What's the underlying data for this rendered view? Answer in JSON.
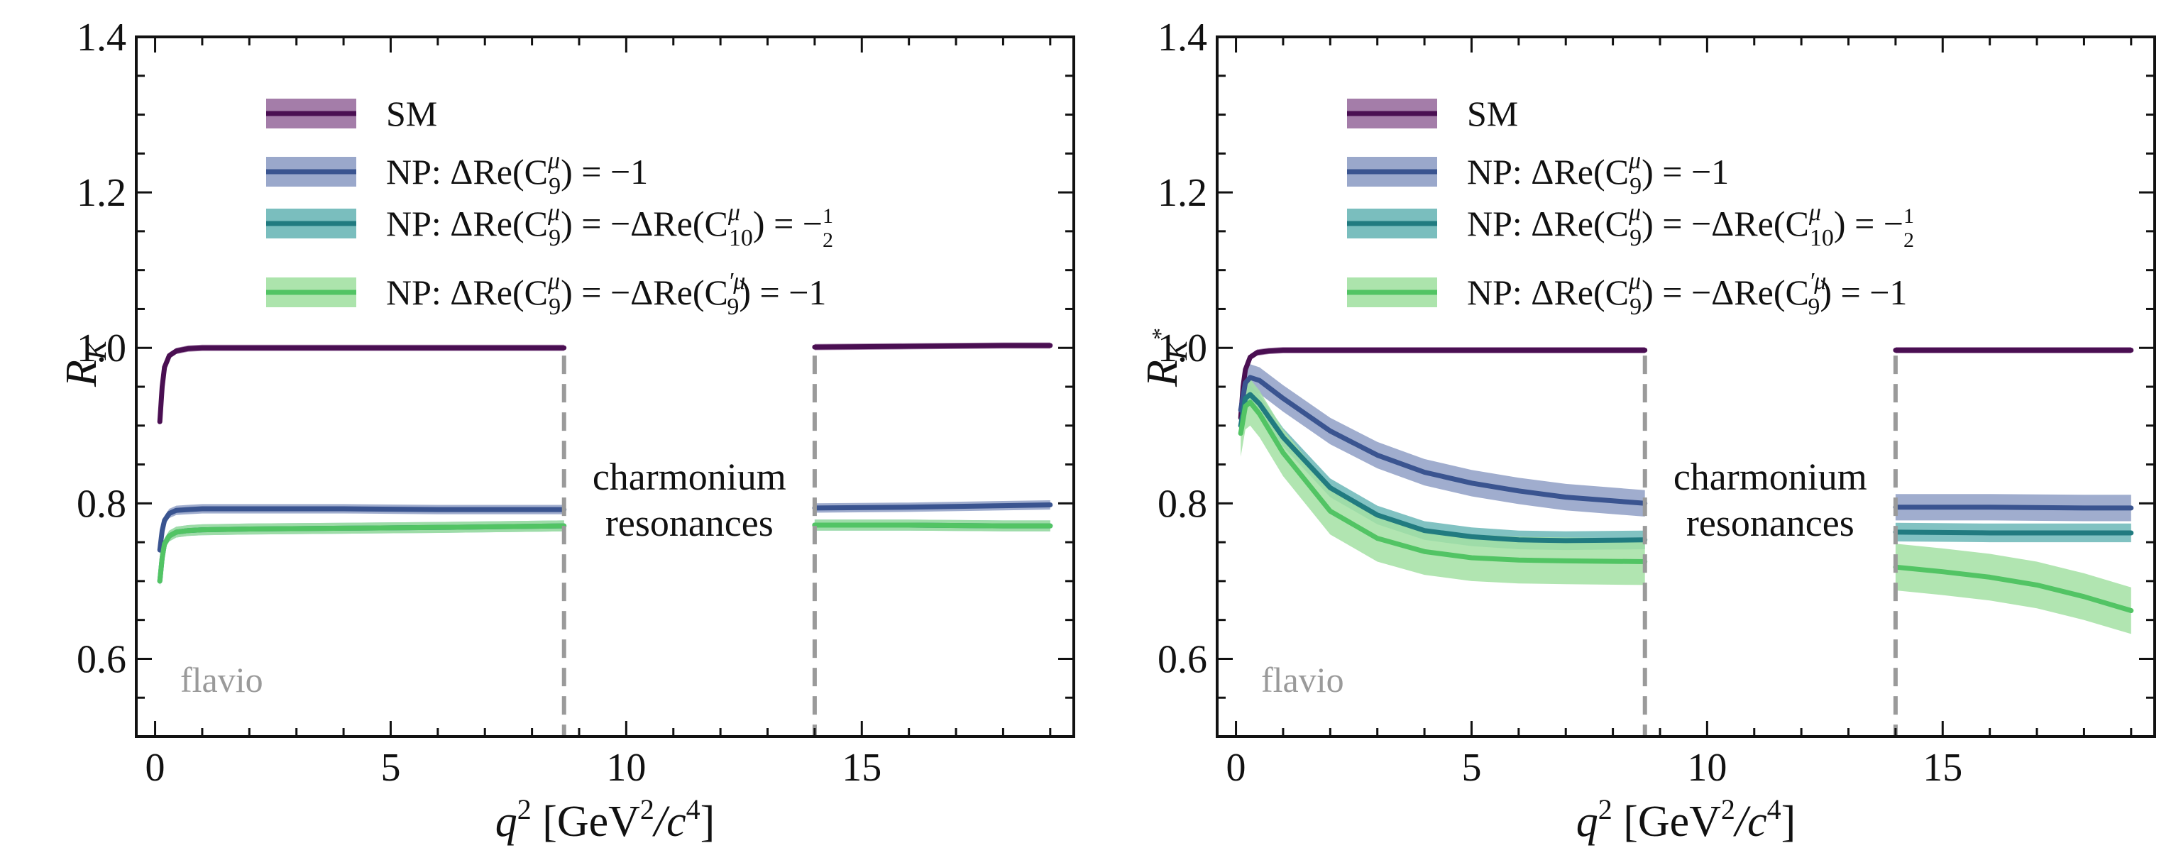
{
  "chart_data": [
    {
      "type": "line",
      "panel": "left",
      "ylabel": "R_K",
      "ylabel_main": "R",
      "ylabel_sub": "K",
      "ylabel_sup": "",
      "xlabel": "q² [GeV²/c⁴]",
      "xlabel_q": "q",
      "xlabel_q_exp": "2",
      "xlabel_rest": "[GeV",
      "xlabel_gev_exp": "2",
      "xlabel_c": "/c",
      "xlabel_c_exp": "4",
      "xlabel_close": "]",
      "xlim": [
        -0.4,
        19.5
      ],
      "ylim": [
        0.5,
        1.4
      ],
      "xticks": [
        0,
        5,
        10,
        15
      ],
      "xtick_labels": [
        "0",
        "5",
        "10",
        "15"
      ],
      "yticks": [
        0.6,
        0.8,
        1.0,
        1.2,
        1.4
      ],
      "ytick_labels": [
        "0.6",
        "0.8",
        "1.0",
        "1.2",
        "1.4"
      ],
      "legend_position": "top-left",
      "watermark": "flavio",
      "annotation": [
        "charmonium",
        "resonances"
      ],
      "vlines": [
        8.68,
        14.0
      ],
      "series": [
        {
          "name": "SM",
          "color": "#4a0f52",
          "band_color": "#9a6fa0",
          "low": {
            "x": [
              0.1,
              0.15,
              0.2,
              0.3,
              0.45,
              0.7,
              1.0,
              2,
              4,
              6,
              8.68
            ],
            "y": [
              0.905,
              0.95,
              0.975,
              0.99,
              0.996,
              0.999,
              1.0,
              1.0,
              1.0,
              1.0,
              1.0
            ]
          },
          "high": {
            "x": [
              14.0,
              16,
              18,
              19
            ],
            "y": [
              1.001,
              1.002,
              1.003,
              1.003
            ]
          },
          "band_halfwidth": 0.004
        },
        {
          "name": "NP: ΔRe(C9μ) = −1",
          "color": "#3a5490",
          "band_color": "#8f9fc5",
          "low": {
            "x": [
              0.1,
              0.15,
              0.2,
              0.3,
              0.45,
              0.7,
              1.0,
              2,
              4,
              6,
              8.68
            ],
            "y": [
              0.74,
              0.765,
              0.778,
              0.787,
              0.791,
              0.792,
              0.793,
              0.793,
              0.793,
              0.792,
              0.792
            ]
          },
          "high": {
            "x": [
              14.0,
              16,
              18,
              19
            ],
            "y": [
              0.794,
              0.795,
              0.797,
              0.798
            ]
          },
          "band_halfwidth": 0.006
        },
        {
          "name": "NP: ΔRe(C9μ) = −ΔRe(C10μ) = −1/2",
          "color": "#217b80",
          "band_color": "#6bb7b7",
          "low": {
            "x": [
              0.1,
              0.15,
              0.2,
              0.3,
              0.45,
              0.7,
              1.0,
              2,
              4,
              6,
              8.68
            ],
            "y": [
              0.7,
              0.73,
              0.748,
              0.758,
              0.763,
              0.765,
              0.766,
              0.767,
              0.768,
              0.769,
              0.771
            ]
          },
          "high": {
            "x": [
              14.0,
              16,
              18,
              19
            ],
            "y": [
              0.772,
              0.772,
              0.771,
              0.771
            ]
          },
          "band_halfwidth": 0.007
        },
        {
          "name": "NP: ΔRe(C9μ) = −ΔRe(C9′μ) = −1",
          "color": "#52c464",
          "band_color": "#a3e1a3",
          "low": {
            "x": [
              0.1,
              0.15,
              0.2,
              0.3,
              0.45,
              0.7,
              1.0,
              2,
              4,
              6,
              8.68
            ],
            "y": [
              0.7,
              0.73,
              0.748,
              0.758,
              0.763,
              0.765,
              0.766,
              0.767,
              0.768,
              0.769,
              0.771
            ]
          },
          "high": {
            "x": [
              14.0,
              16,
              18,
              19
            ],
            "y": [
              0.772,
              0.772,
              0.771,
              0.771
            ]
          },
          "band_halfwidth": 0.007
        }
      ]
    },
    {
      "type": "line",
      "panel": "right",
      "ylabel": "R_K*",
      "ylabel_main": "R",
      "ylabel_sub": "K",
      "ylabel_sup": "*",
      "xlabel": "q² [GeV²/c⁴]",
      "xlabel_q": "q",
      "xlabel_q_exp": "2",
      "xlabel_rest": "[GeV",
      "xlabel_gev_exp": "2",
      "xlabel_c": "/c",
      "xlabel_c_exp": "4",
      "xlabel_close": "]",
      "xlim": [
        -0.4,
        19.5
      ],
      "ylim": [
        0.5,
        1.4
      ],
      "xticks": [
        0,
        5,
        10,
        15
      ],
      "xtick_labels": [
        "0",
        "5",
        "10",
        "15"
      ],
      "yticks": [
        0.6,
        0.8,
        1.0,
        1.2,
        1.4
      ],
      "ytick_labels": [
        "0.6",
        "0.8",
        "1.0",
        "1.2",
        "1.4"
      ],
      "legend_position": "top-left",
      "watermark": "flavio",
      "annotation": [
        "charmonium",
        "resonances"
      ],
      "vlines": [
        8.68,
        14.0
      ],
      "series": [
        {
          "name": "SM",
          "color": "#4a0f52",
          "band_color": "#9a6fa0",
          "low": {
            "x": [
              0.1,
              0.15,
              0.2,
              0.3,
              0.45,
              0.7,
              1.0,
              2,
              4,
              6,
              8.68
            ],
            "y": [
              0.91,
              0.95,
              0.972,
              0.988,
              0.994,
              0.996,
              0.997,
              0.997,
              0.997,
              0.997,
              0.997
            ]
          },
          "high": {
            "x": [
              14.0,
              16,
              18,
              19
            ],
            "y": [
              0.997,
              0.997,
              0.997,
              0.997
            ]
          },
          "band_halfwidth": 0.004
        },
        {
          "name": "NP: ΔRe(C9μ) = −1",
          "color": "#3a5490",
          "band_color": "#8f9fc5",
          "low": {
            "x": [
              0.1,
              0.2,
              0.3,
              0.5,
              1,
              2,
              3,
              4,
              5,
              6,
              7,
              8.68
            ],
            "y": [
              0.92,
              0.955,
              0.962,
              0.958,
              0.935,
              0.893,
              0.862,
              0.84,
              0.826,
              0.816,
              0.808,
              0.8
            ]
          },
          "high": {
            "x": [
              14.0,
              16,
              18,
              19
            ],
            "y": [
              0.795,
              0.795,
              0.794,
              0.794
            ]
          },
          "band_halfwidth": 0.017
        },
        {
          "name": "NP: ΔRe(C9μ) = −ΔRe(C10μ) = −1/2",
          "color": "#217b80",
          "band_color": "#6bb7b7",
          "low": {
            "x": [
              0.1,
              0.2,
              0.3,
              0.5,
              1,
              2,
              3,
              4,
              5,
              6,
              7,
              8.68
            ],
            "y": [
              0.9,
              0.935,
              0.94,
              0.928,
              0.885,
              0.82,
              0.785,
              0.765,
              0.757,
              0.753,
              0.752,
              0.753
            ]
          },
          "high": {
            "x": [
              14.0,
              16,
              18,
              19
            ],
            "y": [
              0.763,
              0.762,
              0.762,
              0.762
            ]
          },
          "band_halfwidth": 0.012
        },
        {
          "name": "NP: ΔRe(C9μ) = −ΔRe(C9′μ) = −1",
          "color": "#52c464",
          "band_color": "#a3e1a3",
          "low": {
            "x": [
              0.1,
              0.2,
              0.3,
              0.5,
              1,
              2,
              3,
              4,
              5,
              6,
              7,
              8.68
            ],
            "y": [
              0.89,
              0.925,
              0.93,
              0.915,
              0.865,
              0.79,
              0.755,
              0.738,
              0.73,
              0.727,
              0.726,
              0.725
            ]
          },
          "high": {
            "x": [
              14.0,
              15,
              16,
              17,
              18,
              19
            ],
            "y": [
              0.718,
              0.712,
              0.705,
              0.695,
              0.68,
              0.662
            ]
          },
          "band_halfwidth": 0.03
        }
      ]
    }
  ],
  "legend_common": {
    "sm": "SM",
    "np_prefix": "NP: ΔRe(C",
    "c_sub_9": "9",
    "c_sub_10": "10",
    "c_sup_mu": "μ",
    "c_sup_prime_mu": "′μ",
    "close": ")",
    "eq_minus_one": " = −1",
    "eq_minus": " = −ΔRe(C",
    "eq_minus_half_prefix": ") = −",
    "half_num": "1",
    "half_den": "2",
    "final_minus_one": ") = −1"
  }
}
